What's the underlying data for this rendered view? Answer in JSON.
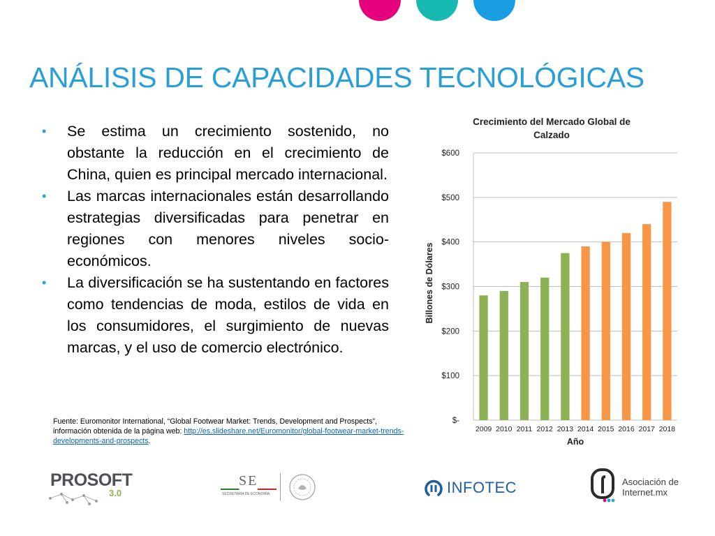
{
  "colors": {
    "title": "#2a9fd6",
    "bullet": "#2a9fd6",
    "dot_magenta": "#e5007d",
    "dot_teal": "#17b8b2",
    "dot_blue": "#1a9ee3",
    "bar_green": "#8db255",
    "bar_orange": "#f79646",
    "link": "#0563c1"
  },
  "slide": {
    "title": "ANÁLISIS DE CAPACIDADES TECNOLÓGICAS",
    "bullets": [
      "Se estima un crecimiento sostenido, no obstante la reducción en el crecimiento de China, quien es principal mercado internacional.",
      "Las marcas internacionales están desarrollando estrategias diversificadas para penetrar en regiones con menores niveles socio-económicos.",
      "La diversificación se ha sustentando en factores como tendencias de moda,  estilos de vida en los consumidores, el surgimiento de nuevas marcas, y el uso de comercio electrónico."
    ],
    "bullet_symbol": "•",
    "source_prefix": "Fuente: Euromonitor International, “Global Footwear Market: Trends, Development and Prospects”, información obtenida de la página web: ",
    "source_link": "http://es.slideshare.net/Euromonitor/global-footwear-market-trends-developments-and-prospects",
    "source_suffix": "."
  },
  "logos": {
    "prosoft_main": "PROSOFT",
    "prosoft_version": "3.0",
    "se_letters": "SE",
    "se_caption": "SECRETARÍA DE ECONOMÍA",
    "infotec": "INFOTEC",
    "asociacion_line1": "Asociación de",
    "asociacion_line2": "Internet.mx"
  },
  "chart_data": {
    "type": "bar",
    "title": "Crecimiento del Mercado Global de Calzado",
    "xlabel": "Año",
    "ylabel": "Billones de Dólares",
    "categories": [
      "2009",
      "2010",
      "2011",
      "2012",
      "2013",
      "2014",
      "2015",
      "2016",
      "2017",
      "2018"
    ],
    "values": [
      280,
      290,
      310,
      320,
      375,
      390,
      400,
      420,
      440,
      490
    ],
    "bar_colors": [
      "green",
      "green",
      "green",
      "green",
      "green",
      "orange",
      "orange",
      "orange",
      "orange",
      "orange"
    ],
    "ylim": [
      0,
      600
    ],
    "yticks": [
      0,
      100,
      200,
      300,
      400,
      500,
      600
    ],
    "ytick_labels": [
      "$-",
      "$100",
      "$200",
      "$300",
      "$400",
      "$500",
      "$600"
    ],
    "grid": true,
    "legend": "none"
  }
}
